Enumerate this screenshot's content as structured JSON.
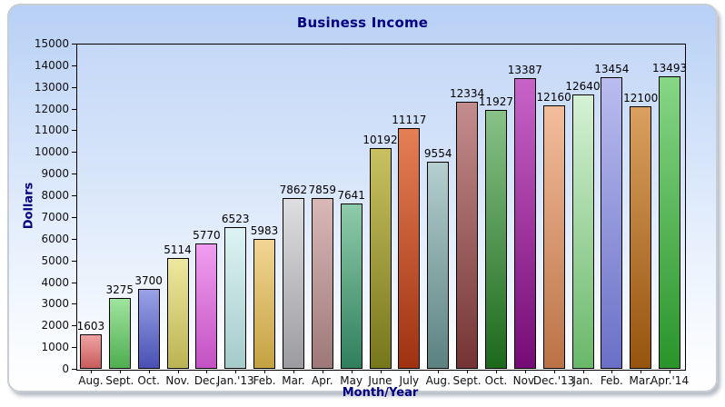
{
  "chart_data": {
    "type": "bar",
    "title": "Business Income",
    "xlabel": "Month/Year",
    "ylabel": "Dollars",
    "ylim": [
      0,
      15000
    ],
    "ytick_step": 1000,
    "grid": false,
    "legend_position": "none",
    "value_labels_shown": true,
    "categories": [
      "Aug.",
      "Sept.",
      "Oct.",
      "Nov.",
      "Dec.",
      "Jan.'13",
      "Feb.",
      "Mar.",
      "Apr.",
      "May",
      "June",
      "July",
      "Aug.",
      "Sept.",
      "Oct.",
      "Nov.",
      "Dec.'13",
      "Jan.",
      "Feb.",
      "Mar.",
      "Apr.'14"
    ],
    "values": [
      1603,
      3275,
      3700,
      5114,
      5770,
      6523,
      5983,
      7862,
      7859,
      7641,
      10192,
      11117,
      9554,
      12334,
      11927,
      13387,
      12160,
      12640,
      13454,
      12100,
      13493
    ],
    "bar_colors": [
      {
        "top": "#f0a2a2",
        "bottom": "#c75c5c"
      },
      {
        "top": "#9fe49f",
        "bottom": "#4fae4f"
      },
      {
        "top": "#99a2e6",
        "bottom": "#4950b4"
      },
      {
        "top": "#eee8a0",
        "bottom": "#bcb352"
      },
      {
        "top": "#f09ef0",
        "bottom": "#c351c3"
      },
      {
        "top": "#ddf3f3",
        "bottom": "#a5cbcb"
      },
      {
        "top": "#f2d593",
        "bottom": "#c4a242"
      },
      {
        "top": "#dedee0",
        "bottom": "#9b9ba1"
      },
      {
        "top": "#d9b8b8",
        "bottom": "#9e7878"
      },
      {
        "top": "#8ecbaa",
        "bottom": "#2f7f5d"
      },
      {
        "top": "#c9c161",
        "bottom": "#76761b"
      },
      {
        "top": "#e57f55",
        "bottom": "#9f3110"
      },
      {
        "top": "#b5cfcf",
        "bottom": "#5b8181"
      },
      {
        "top": "#c48d8d",
        "bottom": "#753434"
      },
      {
        "top": "#88c288",
        "bottom": "#1c691c"
      },
      {
        "top": "#c863c8",
        "bottom": "#760b76"
      },
      {
        "top": "#f3bd9c",
        "bottom": "#bb7245"
      },
      {
        "top": "#d5f1d5",
        "bottom": "#69b869"
      },
      {
        "top": "#babcef",
        "bottom": "#6a70c6"
      },
      {
        "top": "#daa05f",
        "bottom": "#96540e"
      },
      {
        "top": "#86d686",
        "bottom": "#2a942a"
      }
    ],
    "colors": {
      "title_text": "#000080",
      "axis_label_text": "#000080",
      "tick_label_text": "#101010",
      "plot_border": "#000000",
      "bar_outline": "#000000",
      "panel_background_top": "#b7d0f5",
      "panel_background_bottom": "#ffffff"
    }
  }
}
